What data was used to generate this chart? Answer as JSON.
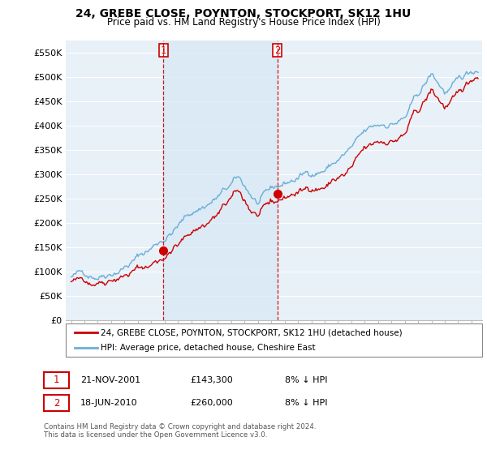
{
  "title": "24, GREBE CLOSE, POYNTON, STOCKPORT, SK12 1HU",
  "subtitle": "Price paid vs. HM Land Registry's House Price Index (HPI)",
  "ylim": [
    0,
    575000
  ],
  "yticks": [
    0,
    50000,
    100000,
    150000,
    200000,
    250000,
    300000,
    350000,
    400000,
    450000,
    500000,
    550000
  ],
  "ytick_labels": [
    "£0",
    "£50K",
    "£100K",
    "£150K",
    "£200K",
    "£250K",
    "£300K",
    "£350K",
    "£400K",
    "£450K",
    "£500K",
    "£550K"
  ],
  "hpi_color": "#6baed6",
  "sale_color": "#cc0000",
  "highlight_color": "#d6e8f5",
  "bg_color": "#e8f0f8",
  "plot_bg": "#e8f0f8",
  "grid_color": "#ffffff",
  "sale1_date": 2001.9,
  "sale1_price": 143300,
  "sale2_date": 2010.47,
  "sale2_price": 260000,
  "legend_sale": "24, GREBE CLOSE, POYNTON, STOCKPORT, SK12 1HU (detached house)",
  "legend_hpi": "HPI: Average price, detached house, Cheshire East",
  "annotation1_label": "1",
  "annotation1_date": "21-NOV-2001",
  "annotation1_price": "£143,300",
  "annotation1_hpi": "8% ↓ HPI",
  "annotation2_label": "2",
  "annotation2_date": "18-JUN-2010",
  "annotation2_price": "£260,000",
  "annotation2_hpi": "8% ↓ HPI",
  "footer": "Contains HM Land Registry data © Crown copyright and database right 2024.\nThis data is licensed under the Open Government Licence v3.0."
}
